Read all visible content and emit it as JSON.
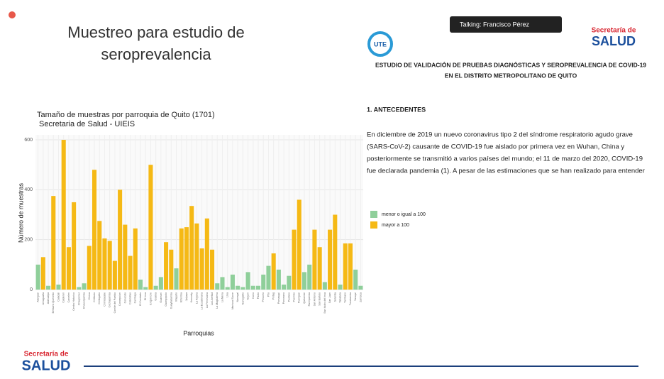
{
  "slide": {
    "title_lines": [
      "Muestreo para estudio de",
      "seroprevalencia"
    ],
    "talking": "Talking: Francisco Pérez",
    "logos": {
      "ute": "UTE",
      "secretaria": "Secretaría de",
      "salud": "SALUD"
    },
    "document": {
      "title_lines": [
        "ESTUDIO DE VALIDACIÓN DE PRUEBAS DIAGNÓSTICAS Y SEROPREVALENCIA DE COVID-19",
        "EN EL DISTRITO METROPOLITANO DE QUITO"
      ],
      "section": "1.   ANTECEDENTES",
      "paragraph_lines": [
        "En diciembre de 2019 un nuevo coronavirus tipo 2 del síndrome respiratorio agudo grave",
        "(SARS-CoV-2) causante de COVID-19 fue aislado por primera vez en Wuhan, China y",
        "posteriormente se transmitió a varios países del mundo; el 11 de marzo del 2020, COVID-19",
        "fue declarada pandemia (1). A pesar de las estimaciones que se han realizado para entender"
      ]
    }
  },
  "chart_data": {
    "type": "bar",
    "title": "Tamaño de muestras por parroquia de Quito (1701)",
    "subtitle": "Secretaria de Salud - UIEIS",
    "y_label": "Número de muestras",
    "x_label": "Parroquias",
    "categories": [
      "Alangasi",
      "Amaguaña",
      "Atahualpa",
      "Belisario Quevedo",
      "Calacali",
      "Calderon",
      "Carcelen",
      "Centro Historico",
      "Chaupicruz",
      "Chavezpamba",
      "Checa",
      "Chilibulo",
      "Chillogallo",
      "Chimbacalle",
      "Cochapamba",
      "Comite del Pueblo",
      "Concepcion",
      "Conocoto",
      "Cotocollao",
      "Cumbaya",
      "El Condado",
      "El Inca",
      "El Quinche",
      "Gualea",
      "Guamani",
      "Guangopolo",
      "Guayllabamba",
      "Iñaquito",
      "Itchimbia",
      "Jipijapa",
      "Kennedy",
      "La Argelia",
      "La Ecuatoriana",
      "La Ferroviaria",
      "La Libertad",
      "La Magdalena",
      "La Mena",
      "Lloa",
      "Mariscal Sucre",
      "Nanegal",
      "Nanegalito",
      "Nayon",
      "Nono",
      "Pacto",
      "Perucho",
      "Pifo",
      "Pintag",
      "Pomasqui",
      "Ponceano",
      "Puellaro",
      "Puembo",
      "Puengasi",
      "Quitumbe",
      "Rumipamba",
      "San Antonio",
      "San Bartolo",
      "San Isidro del Inca",
      "San Juan",
      "Solanda",
      "Tababela",
      "Tumbaco",
      "Turubamba",
      "Yaruqui",
      "Zambiza"
    ],
    "series": [
      {
        "name": "menor o igual a 100",
        "color": "#8fcf9a",
        "values": [
          100,
          null,
          15,
          null,
          20,
          null,
          null,
          null,
          10,
          25,
          null,
          null,
          null,
          null,
          null,
          null,
          null,
          null,
          null,
          null,
          40,
          10,
          null,
          15,
          50,
          null,
          null,
          85,
          null,
          null,
          null,
          null,
          null,
          null,
          null,
          25,
          50,
          10,
          60,
          15,
          10,
          70,
          15,
          15,
          60,
          95,
          null,
          80,
          20,
          55,
          null,
          null,
          70,
          100,
          null,
          null,
          30,
          null,
          null,
          20,
          null,
          null,
          80,
          15
        ]
      },
      {
        "name": "mayor a 100",
        "color": "#f5b915",
        "values": [
          null,
          130,
          null,
          375,
          null,
          600,
          170,
          350,
          null,
          null,
          175,
          480,
          275,
          205,
          195,
          115,
          400,
          260,
          135,
          245,
          null,
          null,
          500,
          null,
          null,
          190,
          160,
          null,
          245,
          250,
          335,
          265,
          165,
          285,
          160,
          null,
          null,
          null,
          null,
          null,
          null,
          null,
          null,
          null,
          null,
          null,
          145,
          null,
          null,
          null,
          240,
          360,
          null,
          null,
          240,
          170,
          null,
          240,
          300,
          null,
          185,
          185,
          null,
          null
        ]
      }
    ],
    "ylim": [
      0,
      620
    ],
    "yticks": [
      0,
      200,
      400,
      600
    ],
    "grid": true
  }
}
